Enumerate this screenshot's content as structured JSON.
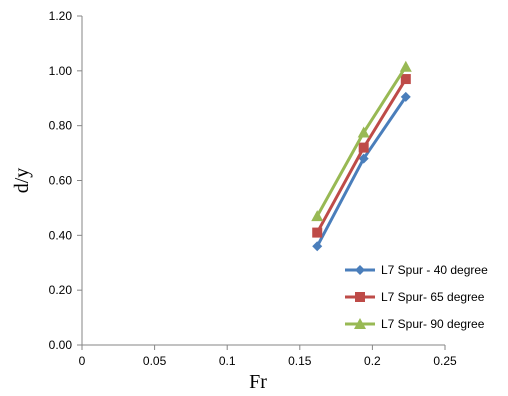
{
  "chart_data": {
    "type": "line",
    "title": "",
    "xlabel": "Fr",
    "ylabel": "d/y",
    "xlim": [
      0,
      0.25
    ],
    "ylim": [
      0,
      1.2
    ],
    "x_ticks": [
      "0",
      "0.05",
      "0.1",
      "0.15",
      "0.2",
      "0.25"
    ],
    "y_ticks": [
      "0.00",
      "0.20",
      "0.40",
      "0.60",
      "0.80",
      "1.00",
      "1.20"
    ],
    "grid": false,
    "legend_position": "bottom-right",
    "series": [
      {
        "name": "L7 Spur - 40 degree",
        "color": "#4a7ebb",
        "marker": "diamond",
        "points": [
          {
            "x": 0.162,
            "y": 0.36
          },
          {
            "x": 0.194,
            "y": 0.68
          },
          {
            "x": 0.223,
            "y": 0.905
          }
        ]
      },
      {
        "name": "L7 Spur- 65 degree",
        "color": "#be4b48",
        "marker": "square",
        "points": [
          {
            "x": 0.162,
            "y": 0.41
          },
          {
            "x": 0.194,
            "y": 0.72
          },
          {
            "x": 0.223,
            "y": 0.97
          }
        ]
      },
      {
        "name": "L7 Spur- 90 degree",
        "color": "#98b954",
        "marker": "triangle",
        "points": [
          {
            "x": 0.162,
            "y": 0.47
          },
          {
            "x": 0.194,
            "y": 0.775
          },
          {
            "x": 0.223,
            "y": 1.015
          }
        ]
      }
    ]
  }
}
